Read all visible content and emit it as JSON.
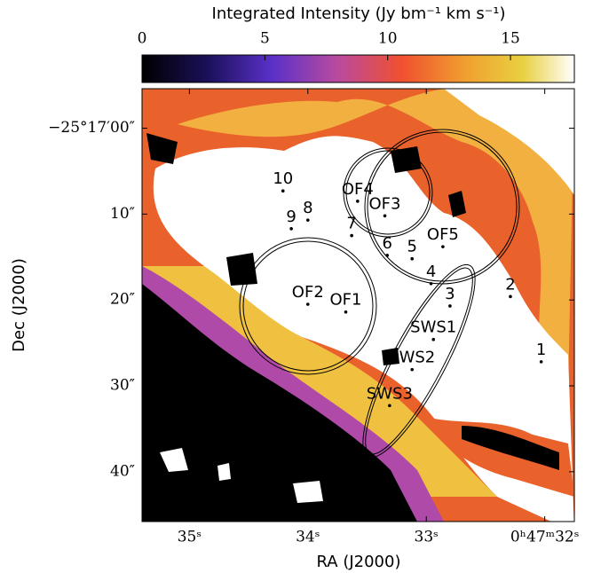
{
  "chart_data": {
    "type": "image",
    "colorbar_label": "Integrated Intensity (Jy bm⁻¹ km s⁻¹)",
    "clim": [
      0,
      17.6
    ],
    "cticks": [
      0,
      5,
      10,
      15
    ],
    "xlabel": "RA (J2000)",
    "ylabel": "Dec (J2000)",
    "xlim": [
      35.4,
      31.75
    ],
    "xticks": [
      {
        "value": 35,
        "label": "35ˢ"
      },
      {
        "value": 34,
        "label": "34ˢ"
      },
      {
        "value": 33,
        "label": "33ˢ"
      },
      {
        "value": 32,
        "label": "0ʰ47ᵐ32ˢ"
      }
    ],
    "ylim": [
      45.8,
      -4.6
    ],
    "yticks": [
      {
        "value": 0,
        "label": "−25°17′00″"
      },
      {
        "value": 10,
        "label": "10″"
      },
      {
        "value": 20,
        "label": "20″"
      },
      {
        "value": 30,
        "label": "30″"
      },
      {
        "value": 40,
        "label": "40″"
      }
    ],
    "sources": [
      {
        "label": "10",
        "ra": 34.21,
        "dec": 7.3
      },
      {
        "label": "9",
        "ra": 34.14,
        "dec": 11.7
      },
      {
        "label": "8",
        "ra": 34.0,
        "dec": 10.7
      },
      {
        "label": "7",
        "ra": 33.63,
        "dec": 12.5
      },
      {
        "label": "OF4",
        "ra": 33.58,
        "dec": 8.5
      },
      {
        "label": "OF3",
        "ra": 33.35,
        "dec": 10.2
      },
      {
        "label": "6",
        "ra": 33.33,
        "dec": 14.8
      },
      {
        "label": "5",
        "ra": 33.12,
        "dec": 15.2
      },
      {
        "label": "OF5",
        "ra": 32.86,
        "dec": 13.8
      },
      {
        "label": "4",
        "ra": 32.96,
        "dec": 18.1
      },
      {
        "label": "3",
        "ra": 32.8,
        "dec": 20.7
      },
      {
        "label": "2",
        "ra": 32.29,
        "dec": 19.6
      },
      {
        "label": "1",
        "ra": 32.03,
        "dec": 27.2
      },
      {
        "label": "OF2",
        "ra": 34.0,
        "dec": 20.5
      },
      {
        "label": "OF1",
        "ra": 33.68,
        "dec": 21.4
      },
      {
        "label": "SWS1",
        "ra": 32.94,
        "dec": 24.6
      },
      {
        "label": "SWS2",
        "ra": 33.12,
        "dec": 28.1
      },
      {
        "label": "SWS3",
        "ra": 33.31,
        "dec": 32.3
      }
    ]
  }
}
